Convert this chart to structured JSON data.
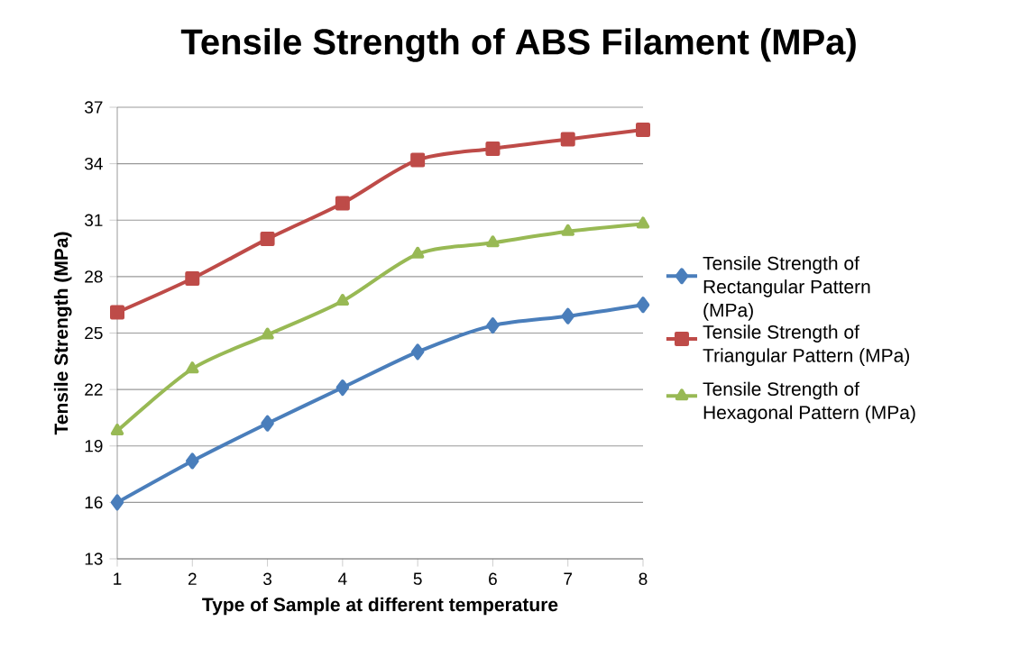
{
  "chart_data": {
    "type": "line",
    "title": "Tensile Strength of ABS Filament (MPa)",
    "xlabel": "Type of Sample at different temperature",
    "ylabel": "Tensile Strength (MPa)",
    "x": [
      1,
      2,
      3,
      4,
      5,
      6,
      7,
      8
    ],
    "xlim": [
      1,
      8
    ],
    "xticks": [
      1,
      2,
      3,
      4,
      5,
      6,
      7,
      8
    ],
    "ylim": [
      13,
      37
    ],
    "yticks": [
      13,
      16,
      19,
      22,
      25,
      28,
      31,
      34,
      37
    ],
    "grid": "y",
    "legend": "right",
    "series": [
      {
        "name": "Tensile Strength of Rectangular Pattern (MPa)",
        "color": "#4a7ebb",
        "marker": "diamond",
        "values": [
          16.0,
          18.2,
          20.2,
          22.1,
          24.0,
          25.4,
          25.9,
          26.5
        ]
      },
      {
        "name": "Tensile Strength of Triangular Pattern (MPa)",
        "color": "#be4b48",
        "marker": "square",
        "values": [
          26.1,
          27.9,
          30.0,
          31.9,
          34.2,
          34.8,
          35.3,
          35.8
        ]
      },
      {
        "name": "Tensile Strength of Hexagonal Pattern (MPa)",
        "color": "#98b954",
        "marker": "triangle",
        "values": [
          19.8,
          23.1,
          24.9,
          26.7,
          29.2,
          29.8,
          30.4,
          30.8
        ]
      }
    ]
  }
}
